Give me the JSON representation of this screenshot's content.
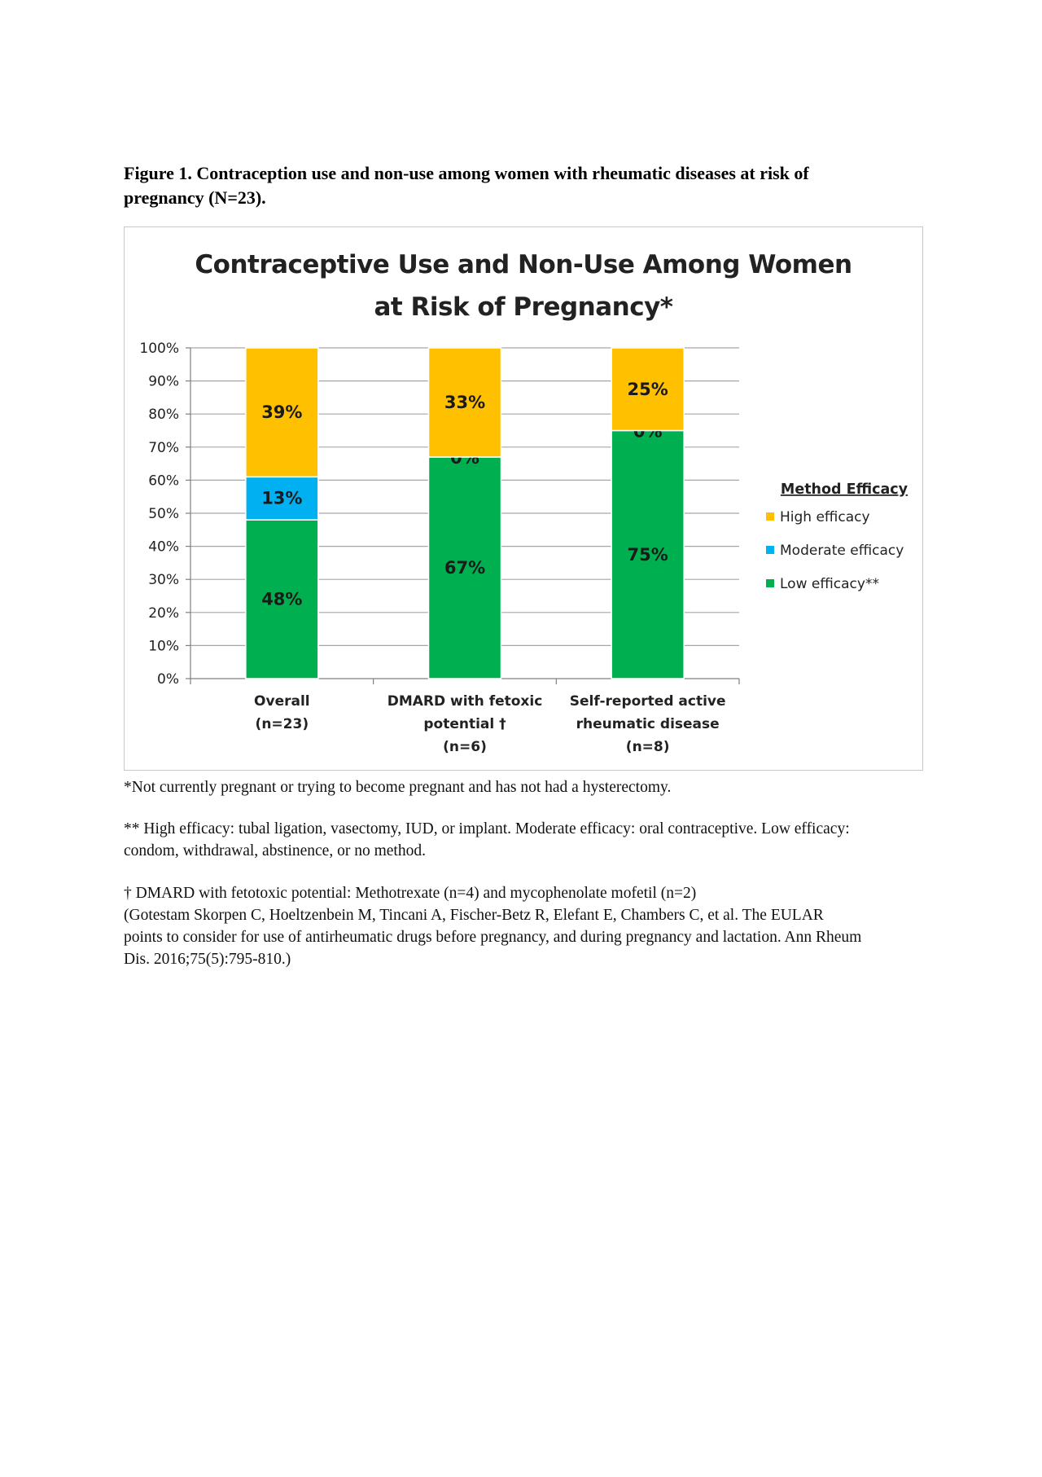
{
  "caption": {
    "line1": "Figure 1. Contraception use and non-use among women with rheumatic diseases at risk of",
    "line2": "pregnancy (N=23)."
  },
  "colors": {
    "high": "#ffc000",
    "moderate": "#00b0f0",
    "low": "#00b050",
    "grid": "#a6a6a6",
    "text": "#222222"
  },
  "chart_data": {
    "type": "bar",
    "stacked": true,
    "title": [
      "Contraceptive Use and Non-Use Among Women",
      "at Risk of Pregnancy*"
    ],
    "categories": [
      [
        "Overall",
        "(n=23)"
      ],
      [
        "DMARD with fetoxic",
        "potential †",
        "(n=6)"
      ],
      [
        "Self-reported active",
        "rheumatic disease",
        "(n=8)"
      ]
    ],
    "series": [
      {
        "name": "Low efficacy**",
        "color_key": "low",
        "values": [
          48,
          67,
          75
        ],
        "labels": [
          "48%",
          "67%",
          "75%"
        ]
      },
      {
        "name": "Moderate efficacy",
        "color_key": "moderate",
        "values": [
          13,
          0,
          0
        ],
        "labels": [
          "13%",
          "0%",
          "0%"
        ]
      },
      {
        "name": "High efficacy",
        "color_key": "high",
        "values": [
          39,
          33,
          25
        ],
        "labels": [
          "39%",
          "33%",
          "25%"
        ]
      }
    ],
    "ylim": [
      0,
      100
    ],
    "yticks": [
      "0%",
      "10%",
      "20%",
      "30%",
      "40%",
      "50%",
      "60%",
      "70%",
      "80%",
      "90%",
      "100%"
    ],
    "grid": true,
    "legend": {
      "title": "Method Efficacy",
      "position": "right",
      "items": [
        {
          "label": "High efficacy",
          "color_key": "high"
        },
        {
          "label": "Moderate efficacy",
          "color_key": "moderate"
        },
        {
          "label": "Low efficacy**",
          "color_key": "low"
        }
      ]
    }
  },
  "notes": {
    "n1": "*Not currently pregnant or trying to become pregnant and has not had a hysterectomy.",
    "n2a": "** High efficacy: tubal ligation, vasectomy, IUD, or implant. Moderate efficacy: oral contraceptive. Low efficacy:",
    "n2b": "condom, withdrawal, abstinence, or no method.",
    "n3a": "† DMARD with fetotoxic potential: Methotrexate (n=4) and mycophenolate mofetil (n=2)",
    "n3b": "(Gotestam Skorpen C, Hoeltzenbein M, Tincani A, Fischer-Betz R, Elefant E, Chambers C, et al. The EULAR",
    "n3c": "points to consider for use of antirheumatic drugs before pregnancy, and during pregnancy and lactation. Ann Rheum",
    "n3d": "Dis. 2016;75(5):795-810.)"
  }
}
